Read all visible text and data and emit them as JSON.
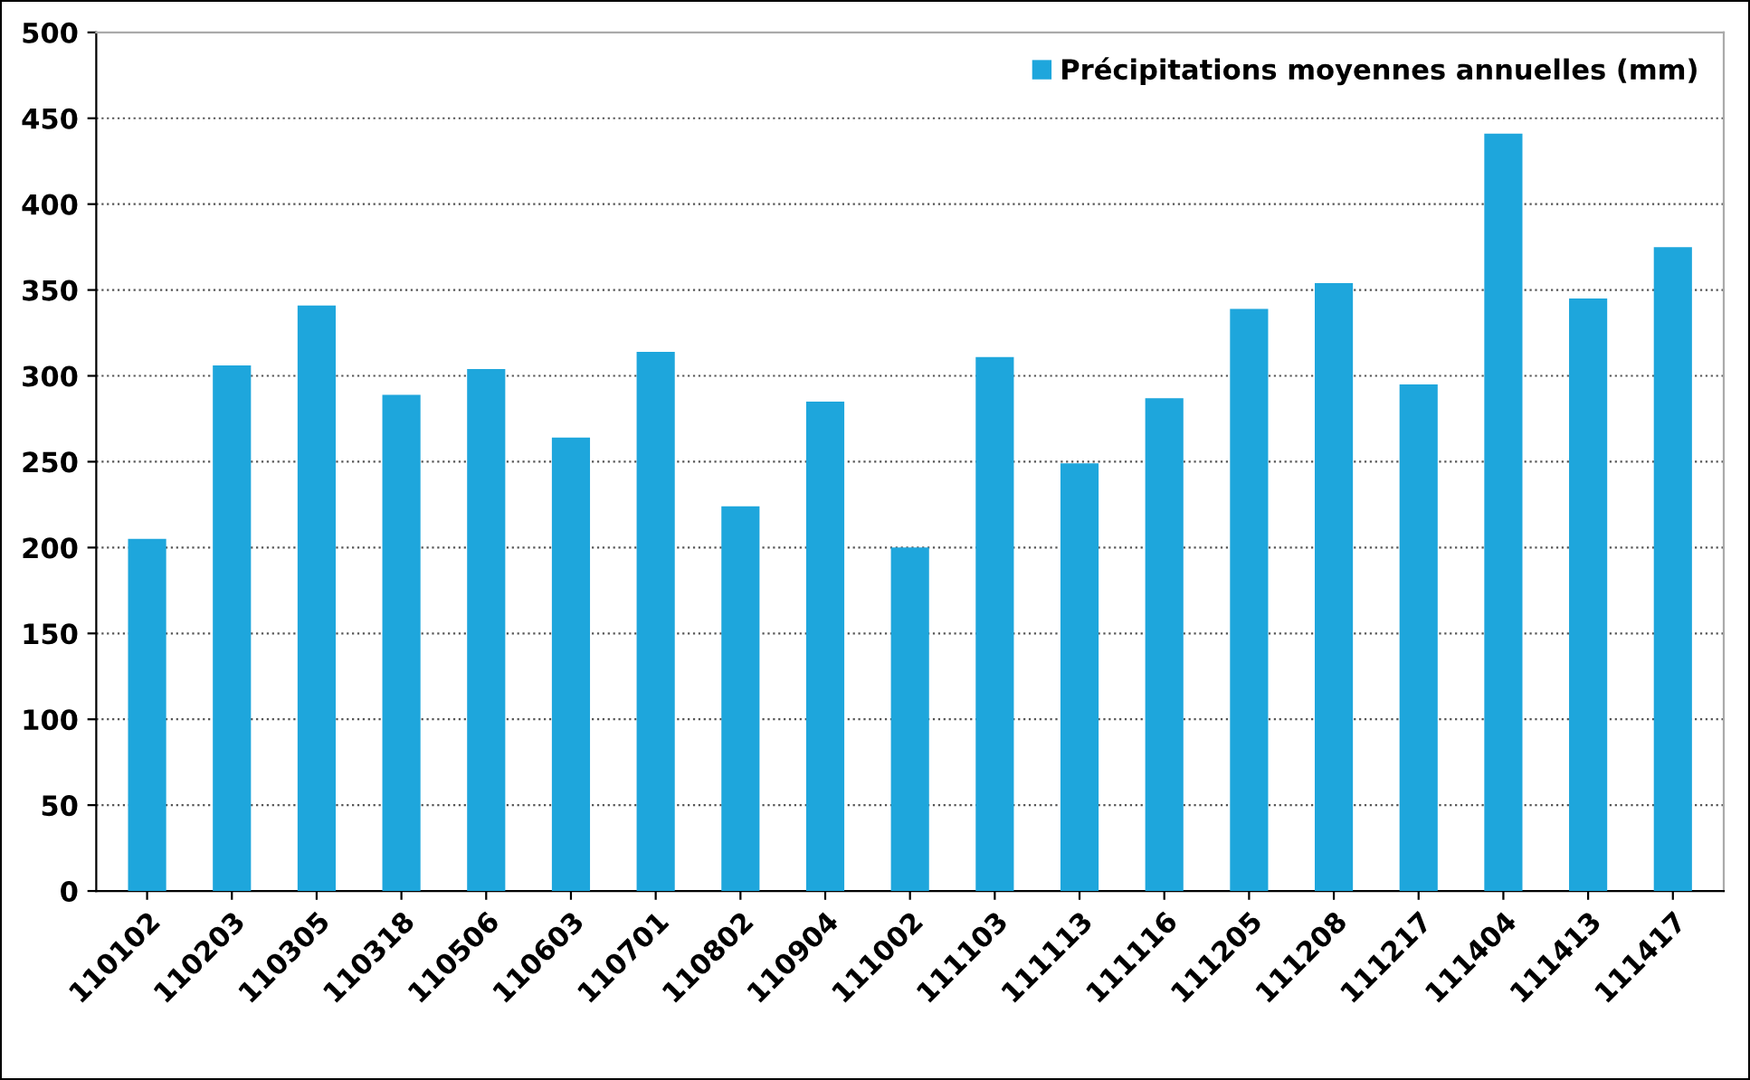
{
  "chart_data": {
    "type": "bar",
    "categories": [
      "110102",
      "110203",
      "110305",
      "110318",
      "110506",
      "110603",
      "110701",
      "110802",
      "110904",
      "111002",
      "111103",
      "111113",
      "111116",
      "111205",
      "111208",
      "111217",
      "111404",
      "111413",
      "111417"
    ],
    "series": [
      {
        "name": "Précipitations moyennes annuelles (mm)",
        "color": "#1ea6dc",
        "values": [
          205,
          306,
          341,
          289,
          304,
          264,
          314,
          224,
          285,
          200,
          311,
          249,
          287,
          339,
          354,
          295,
          441,
          345,
          375
        ]
      }
    ],
    "ylim": [
      0,
      500
    ],
    "yticks": [
      0,
      50,
      100,
      150,
      200,
      250,
      300,
      350,
      400,
      450,
      500
    ],
    "grid": "y",
    "legend": "top right"
  }
}
